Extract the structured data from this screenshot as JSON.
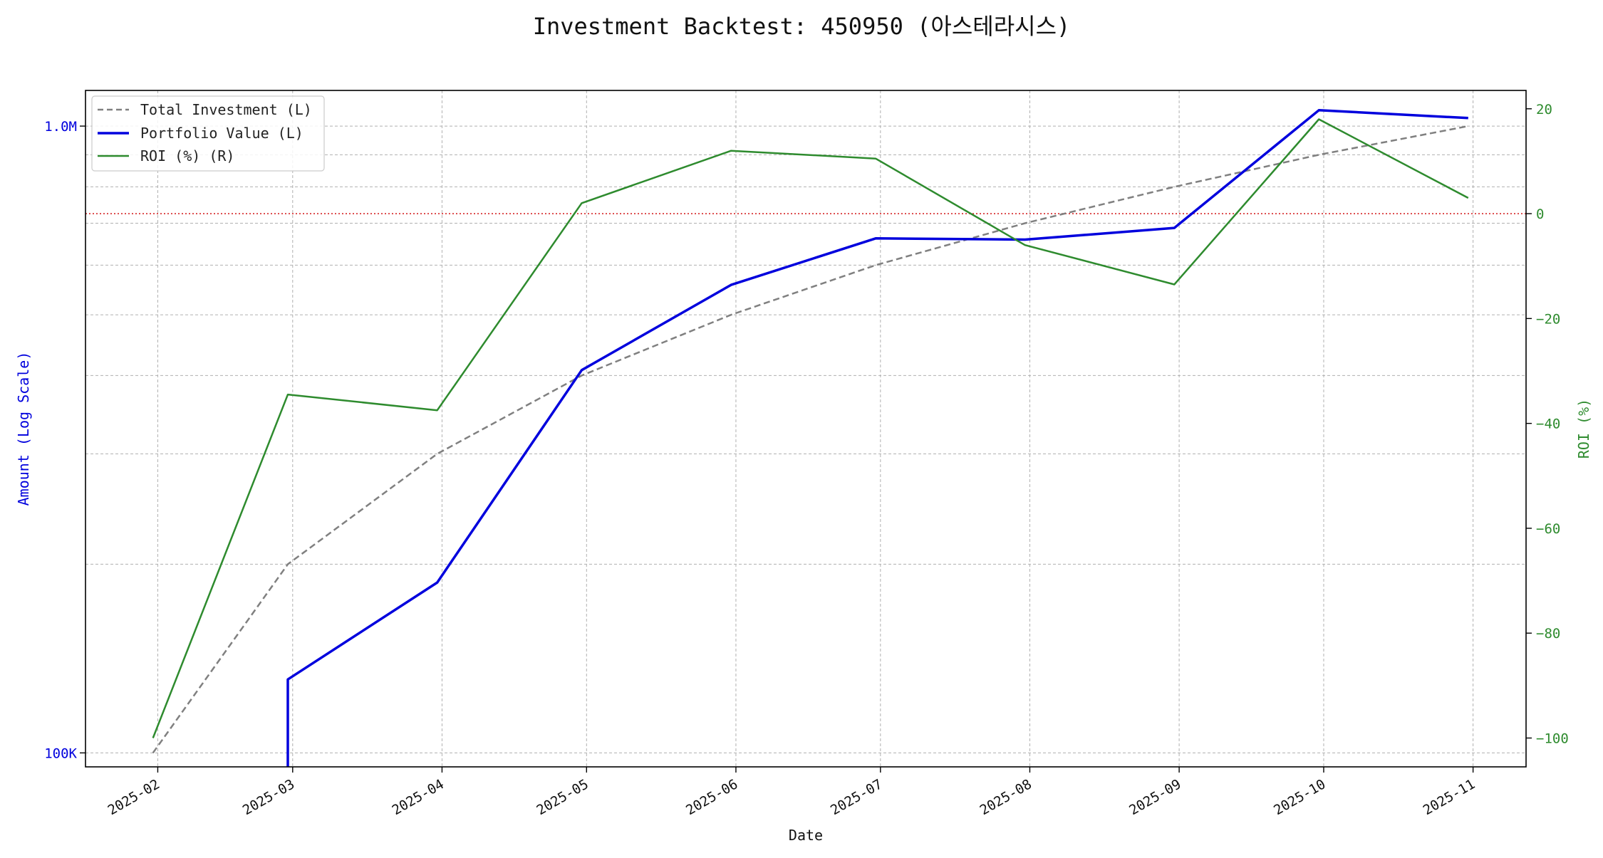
{
  "chart_data": {
    "type": "line",
    "title": "Investment Backtest: 450950 (아스테라시스)",
    "xlabel": "Date",
    "ylabel_left": "Amount (Log Scale)",
    "ylabel_right": "ROI (%)",
    "left_axis": {
      "scale": "log",
      "ylim": [
        95000,
        1140000
      ],
      "tick_values": [
        100000,
        1000000
      ],
      "tick_labels": [
        "100K",
        "1.0M"
      ]
    },
    "right_axis": {
      "scale": "linear",
      "ylim": [
        -105.5,
        23.5
      ],
      "tick_values": [
        -100,
        -80,
        -60,
        -40,
        -20,
        0,
        20
      ],
      "tick_labels": [
        "−100",
        "−80",
        "−60",
        "−40",
        "−20",
        "0",
        "20"
      ]
    },
    "x_range": [
      "2025-01-17",
      "2025-11-12"
    ],
    "x_ticks": [
      "2025-02",
      "2025-03",
      "2025-04",
      "2025-05",
      "2025-06",
      "2025-07",
      "2025-08",
      "2025-09",
      "2025-10",
      "2025-11"
    ],
    "x_tick_dates": [
      "2025-02-01",
      "2025-03-01",
      "2025-04-01",
      "2025-05-01",
      "2025-06-01",
      "2025-07-01",
      "2025-08-01",
      "2025-09-01",
      "2025-10-01",
      "2025-11-01"
    ],
    "reference_line": {
      "axis": "right",
      "value": 0,
      "color": "#d62728",
      "style": "dotted"
    },
    "grid": true,
    "legend_position": "upper left",
    "series": [
      {
        "name": "Total Investment (L)",
        "axis": "left",
        "color": "#808080",
        "style": "dashed",
        "x": [
          "2025-01-31",
          "2025-02-28",
          "2025-03-31",
          "2025-04-30",
          "2025-05-31",
          "2025-06-30",
          "2025-07-31",
          "2025-08-31",
          "2025-09-30",
          "2025-10-31"
        ],
        "values": [
          100000,
          200000,
          300000,
          400000,
          500000,
          600000,
          700000,
          800000,
          900000,
          1000000
        ]
      },
      {
        "name": "Portfolio Value (L)",
        "axis": "left",
        "color": "#0000dd",
        "style": "solid",
        "x": [
          "2025-02-28",
          "2025-02-28",
          "2025-03-31",
          "2025-04-30",
          "2025-05-31",
          "2025-06-30",
          "2025-07-31",
          "2025-08-31",
          "2025-09-30",
          "2025-10-31"
        ],
        "values": [
          95000,
          131000,
          187000,
          408000,
          558000,
          662000,
          659000,
          688000,
          1060000,
          1030000
        ]
      },
      {
        "name": "ROI (%) (R)",
        "axis": "right",
        "color": "#2e8b2e",
        "style": "solid",
        "x": [
          "2025-01-31",
          "2025-02-28",
          "2025-03-31",
          "2025-04-30",
          "2025-05-31",
          "2025-06-30",
          "2025-07-31",
          "2025-08-31",
          "2025-09-30",
          "2025-10-31"
        ],
        "values": [
          -100,
          -34.5,
          -37.5,
          2,
          12,
          10.5,
          -6,
          -13.5,
          18,
          3
        ]
      }
    ]
  }
}
